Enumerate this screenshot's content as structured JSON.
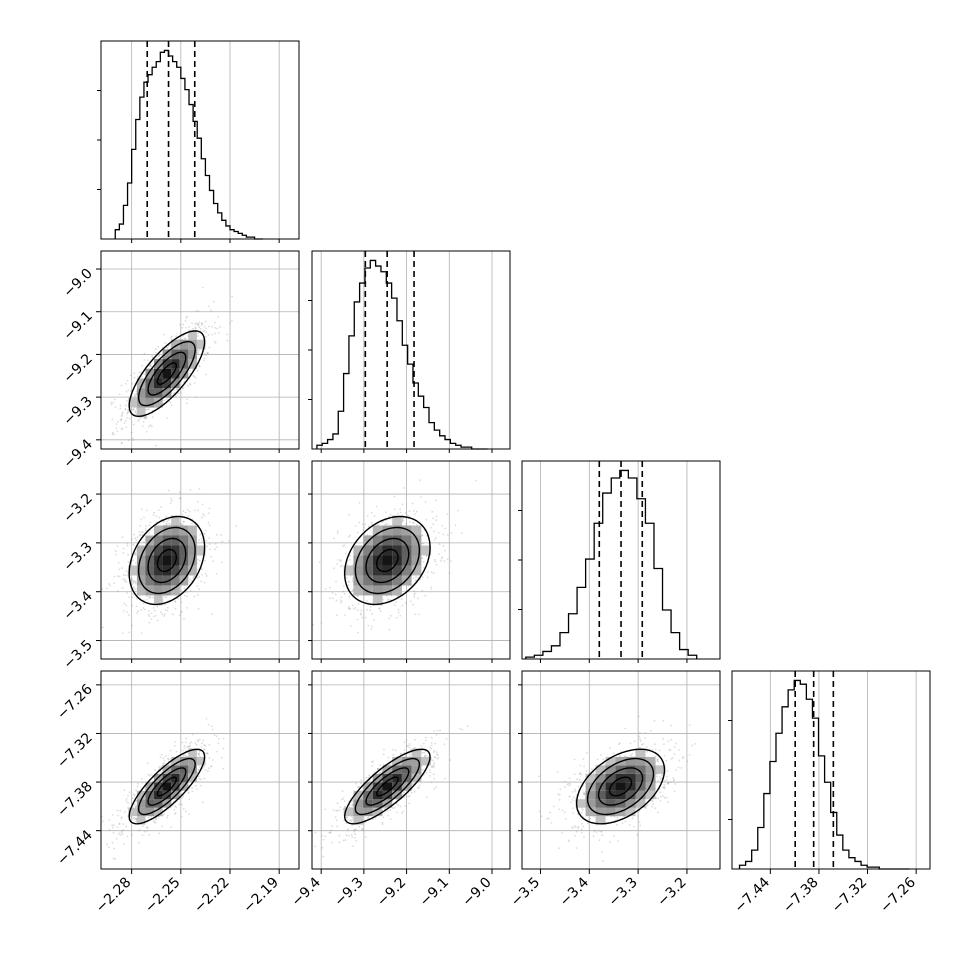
{
  "chart_data": {
    "type": "scatter",
    "subtype": "corner-plot",
    "grid": true,
    "colors": {
      "hist": "#000000",
      "scatter": "#9a9a9a",
      "contour": "#000000",
      "grid": "#b0b0b0"
    },
    "params": [
      {
        "ticks": [
          "−2.28",
          "−2.25",
          "−2.22",
          "−2.19"
        ],
        "tick_values": [
          -2.28,
          -2.25,
          -2.22,
          -2.19
        ],
        "range": [
          -2.2987,
          -2.1779
        ],
        "mean": -2.2585,
        "sigma": 0.0115,
        "quantiles": [
          -2.2705,
          -2.2575,
          -2.2415
        ],
        "hist_bins": [
          -2.29,
          -2.2875,
          -2.285,
          -2.2825,
          -2.28,
          -2.2775,
          -2.275,
          -2.2725,
          -2.27,
          -2.2675,
          -2.265,
          -2.2625,
          -2.26,
          -2.2575,
          -2.255,
          -2.2525,
          -2.25,
          -2.2475,
          -2.245,
          -2.2425,
          -2.24,
          -2.2375,
          -2.235,
          -2.2325,
          -2.23,
          -2.2275,
          -2.225,
          -2.2225,
          -2.22,
          -2.2175,
          -2.215,
          -2.2125,
          -2.21,
          -2.2075,
          -2.205,
          -2.2025,
          -2.2
        ],
        "hist_counts": [
          5,
          8,
          18,
          30,
          48,
          64,
          76,
          84,
          88,
          92,
          95,
          100,
          101,
          98,
          95,
          92,
          86,
          80,
          72,
          63,
          54,
          43,
          34,
          26,
          19,
          14,
          10,
          7,
          5,
          4,
          3,
          2,
          1,
          1,
          0
        ]
      },
      {
        "ticks": [
          "−9.4",
          "−9.3",
          "−9.2",
          "−9.1",
          "−9.0"
        ],
        "tick_values": [
          -9.4,
          -9.3,
          -9.2,
          -9.1,
          -9.0
        ],
        "range": [
          -9.4215,
          -8.9578
        ],
        "mean": -9.245,
        "sigma": 0.05,
        "quantiles": [
          -9.2966,
          -9.2455,
          -9.1825
        ],
        "hist_bins": [
          -9.41,
          -9.3975,
          -9.385,
          -9.3725,
          -9.36,
          -9.3475,
          -9.335,
          -9.3225,
          -9.31,
          -9.2975,
          -9.285,
          -9.2725,
          -9.26,
          -9.2475,
          -9.235,
          -9.2225,
          -9.21,
          -9.1975,
          -9.185,
          -9.1725,
          -9.16,
          -9.1475,
          -9.135,
          -9.1225,
          -9.11,
          -9.0975,
          -9.085,
          -9.0725,
          -9.06,
          -9.0475,
          -9.035,
          -9.0225,
          -9.01
        ],
        "hist_counts": [
          2,
          3,
          5,
          8,
          20,
          40,
          60,
          78,
          88,
          96,
          100,
          97,
          94,
          88,
          80,
          68,
          55,
          45,
          35,
          28,
          22,
          14,
          10,
          7,
          5,
          3,
          2,
          1,
          1,
          0,
          0,
          0
        ]
      },
      {
        "ticks": [
          "−3.5",
          "−3.4",
          "−3.3",
          "−3.2"
        ],
        "tick_values": [
          -3.5,
          -3.4,
          -3.3,
          -3.2
        ],
        "range": [
          -3.5378,
          -3.1323
        ],
        "mean": -3.336,
        "sigma": 0.045,
        "quantiles": [
          -3.3795,
          -3.335,
          -3.2915
        ],
        "hist_bins": [
          -3.53,
          -3.5125,
          -3.495,
          -3.4775,
          -3.46,
          -3.4425,
          -3.425,
          -3.4075,
          -3.39,
          -3.3725,
          -3.355,
          -3.3375,
          -3.32,
          -3.3025,
          -3.285,
          -3.2675,
          -3.25,
          -3.2325,
          -3.215,
          -3.1975,
          -3.18
        ],
        "hist_counts": [
          1,
          2,
          4,
          7,
          14,
          24,
          38,
          53,
          72,
          88,
          96,
          100,
          96,
          85,
          72,
          48,
          26,
          14,
          5,
          2
        ]
      },
      {
        "ticks": [
          "−7.44",
          "−7.38",
          "−7.32",
          "−7.26"
        ],
        "tick_values": [
          -7.44,
          -7.38,
          -7.32,
          -7.26
        ],
        "range": [
          -7.4873,
          -7.2429
        ],
        "mean": -7.3855,
        "sigma": 0.023,
        "quantiles": [
          -7.4093,
          -7.3865,
          -7.3622
        ],
        "hist_bins": [
          -7.478,
          -7.4705,
          -7.463,
          -7.4555,
          -7.448,
          -7.4405,
          -7.433,
          -7.4255,
          -7.418,
          -7.4105,
          -7.403,
          -7.3955,
          -7.388,
          -7.3805,
          -7.373,
          -7.3655,
          -7.358,
          -7.3505,
          -7.343,
          -7.3355,
          -7.328,
          -7.3205,
          -7.313,
          -7.3055,
          -7.298,
          -7.2905,
          -7.283,
          -7.2755,
          -7.268
        ],
        "hist_counts": [
          2,
          4,
          10,
          22,
          40,
          57,
          72,
          86,
          95,
          100,
          98,
          90,
          80,
          60,
          46,
          30,
          18,
          10,
          6,
          4,
          2,
          1,
          1,
          0,
          0,
          0,
          0,
          0
        ]
      }
    ],
    "pairs": [
      {
        "row": 1,
        "col": 0,
        "rho": 0.75
      },
      {
        "row": 2,
        "col": 0,
        "rho": 0.3
      },
      {
        "row": 2,
        "col": 1,
        "rho": 0.3
      },
      {
        "row": 3,
        "col": 0,
        "rho": 0.8
      },
      {
        "row": 3,
        "col": 1,
        "rho": 0.8
      },
      {
        "row": 3,
        "col": 2,
        "rho": 0.45
      }
    ]
  }
}
